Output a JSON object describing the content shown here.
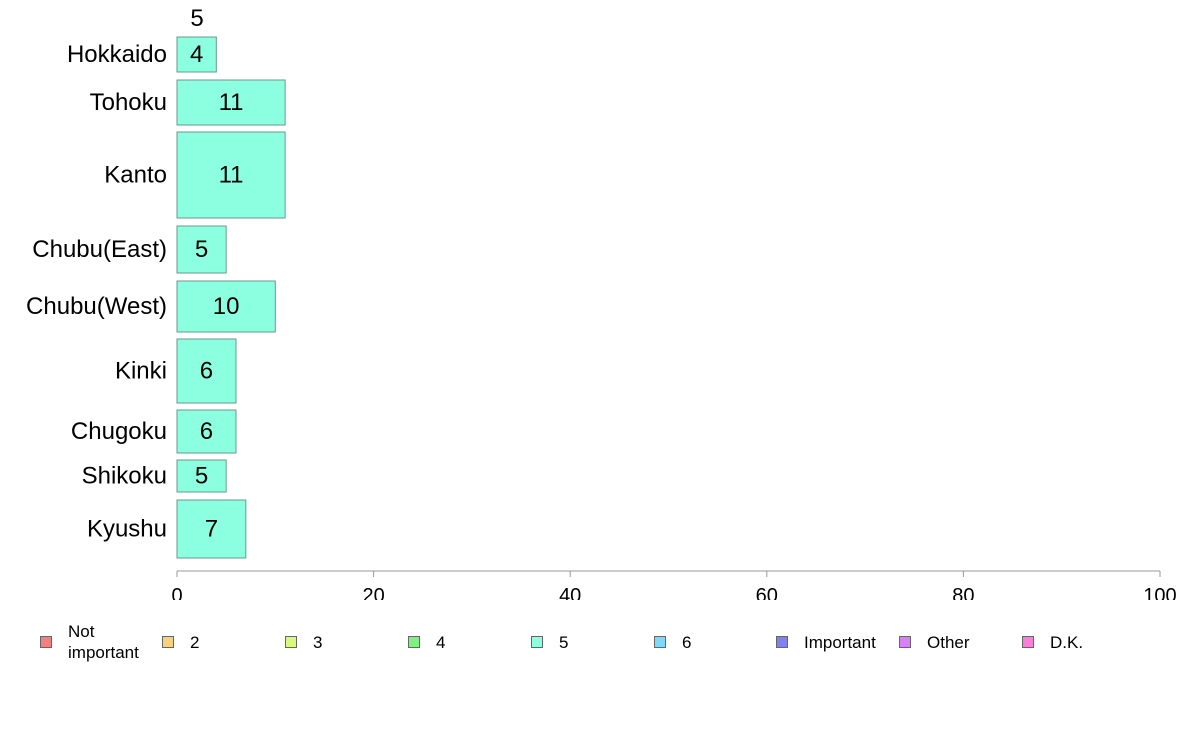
{
  "chart_data": {
    "type": "bar",
    "orientation": "horizontal",
    "stacked": true,
    "top_value_label": "5",
    "categories": [
      "Hokkaido",
      "Tohoku",
      "Kanto",
      "Chubu(East)",
      "Chubu(West)",
      "Kinki",
      "Chugoku",
      "Shikoku",
      "Kyushu"
    ],
    "series": [
      {
        "name": "Not important",
        "color": "#f28080",
        "values": [
          0,
          0,
          0,
          0,
          0,
          0,
          0,
          0,
          0
        ]
      },
      {
        "name": "2",
        "color": "#f8d080",
        "values": [
          0,
          0,
          0,
          0,
          0,
          0,
          0,
          0,
          0
        ]
      },
      {
        "name": "3",
        "color": "#d8f880",
        "values": [
          0,
          0,
          0,
          0,
          0,
          0,
          0,
          0,
          0
        ]
      },
      {
        "name": "4",
        "color": "#80f080",
        "values": [
          0,
          0,
          0,
          0,
          0,
          0,
          0,
          0,
          0
        ]
      },
      {
        "name": "5",
        "color": "#8cffe0",
        "values": [
          4,
          11,
          11,
          5,
          10,
          6,
          6,
          5,
          7
        ]
      },
      {
        "name": "6",
        "color": "#80d8f8",
        "values": [
          0,
          0,
          0,
          0,
          0,
          0,
          0,
          0,
          0
        ]
      },
      {
        "name": "Important",
        "color": "#8080f0",
        "values": [
          0,
          0,
          0,
          0,
          0,
          0,
          0,
          0,
          0
        ]
      },
      {
        "name": "Other",
        "color": "#d880f8",
        "values": [
          0,
          0,
          0,
          0,
          0,
          0,
          0,
          0,
          0
        ]
      },
      {
        "name": "D.K.",
        "color": "#f880d8",
        "values": [
          0,
          0,
          0,
          0,
          0,
          0,
          0,
          0,
          0
        ]
      }
    ],
    "xlim": [
      0,
      100
    ],
    "xticks": [
      "0",
      "20",
      "40",
      "60",
      "80",
      "100"
    ],
    "grid": false,
    "legend_position": "bottom"
  }
}
